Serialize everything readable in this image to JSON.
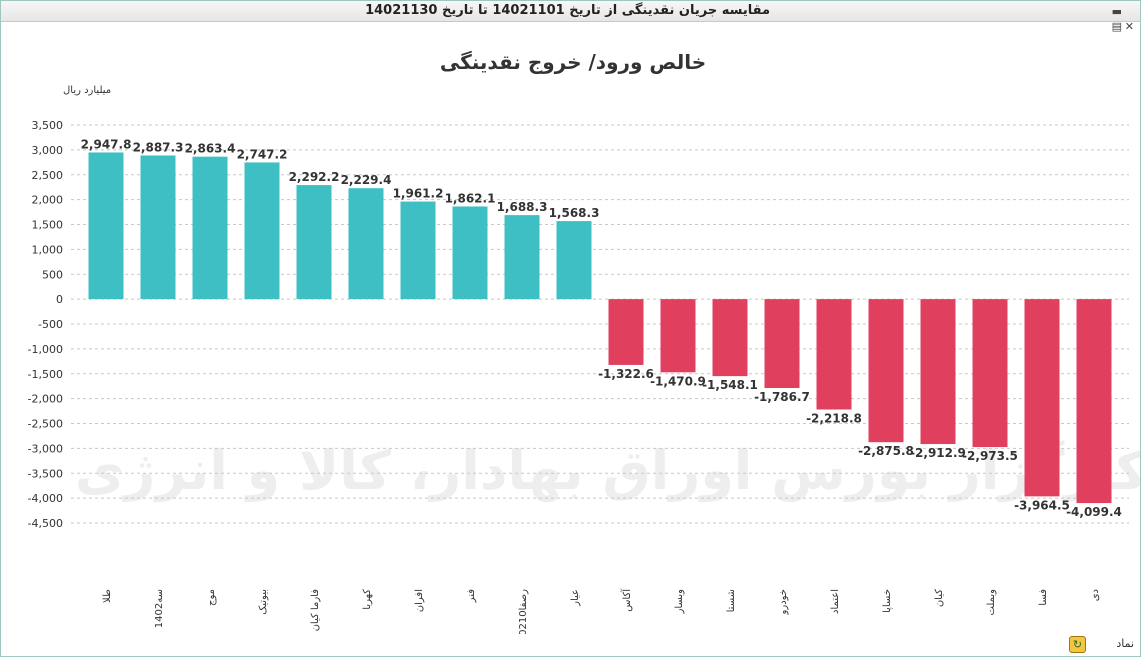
{
  "window": {
    "title": "مقایسه جریان نقدینگی از تاریخ 14021101 تا تاریخ 14021130"
  },
  "toolbar": {
    "minimize_icon": "minimize-icon",
    "print_icon": "printer-icon",
    "close_icon": "close-icon"
  },
  "controls": {
    "symbol_label": "نماد",
    "refresh_icon": "refresh-icon"
  },
  "watermark": {
    "text": "کارگزار بورس اوراق بهادار، کالا و انرژی"
  },
  "chart_data": {
    "type": "bar",
    "title": "خالص ورود/ خروج نقدینگی",
    "ylabel": "میلیارد ریال",
    "xlabel": "",
    "ylim": [
      -4500,
      3500
    ],
    "yticks": [
      3500,
      3000,
      2500,
      2000,
      1500,
      1000,
      500,
      0,
      -500,
      -1000,
      -1500,
      -2000,
      -2500,
      -3000,
      -3500,
      -4000,
      -4500
    ],
    "ytick_labels": [
      "3,500",
      "3,000",
      "2,500",
      "2,000",
      "1,500",
      "1,000",
      "500",
      "0",
      "-500",
      "-1,000",
      "-1,500",
      "-2,000",
      "-2,500",
      "-3,000",
      "-3,500",
      "-4,000",
      "-4,500"
    ],
    "grid": true,
    "categories": [
      "طلا",
      "سه1402",
      "موج",
      "بیوتیک",
      "فارما کیان",
      "کهربا",
      "افران",
      "فنر",
      "رصفا0210ب10",
      "عیار",
      "آکاس",
      "وبسار",
      "شستا",
      "خودرو",
      "اعتماد",
      "خساپا",
      "کیان",
      "وبملت",
      "فسا",
      "دی"
    ],
    "values": [
      2947.8,
      2887.3,
      2863.4,
      2747.2,
      2292.2,
      2229.4,
      1961.2,
      1862.1,
      1688.3,
      1568.3,
      -1322.6,
      -1470.9,
      -1548.1,
      -1786.7,
      -2218.8,
      -2875.8,
      -2912.9,
      -2973.5,
      -3964.5,
      -4099.4
    ],
    "value_labels": [
      "2,947.8",
      "2,887.3",
      "2,863.4",
      "2,747.2",
      "2,292.2",
      "2,229.4",
      "1,961.2",
      "1,862.1",
      "1,688.3",
      "1,568.3",
      "-1,322.6",
      "-1,470.9",
      "-1,548.1",
      "-1,786.7",
      "-2,218.8",
      "-2,875.8",
      "-2,912.9",
      "-2,973.5",
      "-3,964.5",
      "-4,099.4"
    ],
    "colors": {
      "positive": "#3dbfc4",
      "negative": "#e0405e",
      "grid": "#c8c8c8",
      "axis_text": "#333333"
    }
  }
}
